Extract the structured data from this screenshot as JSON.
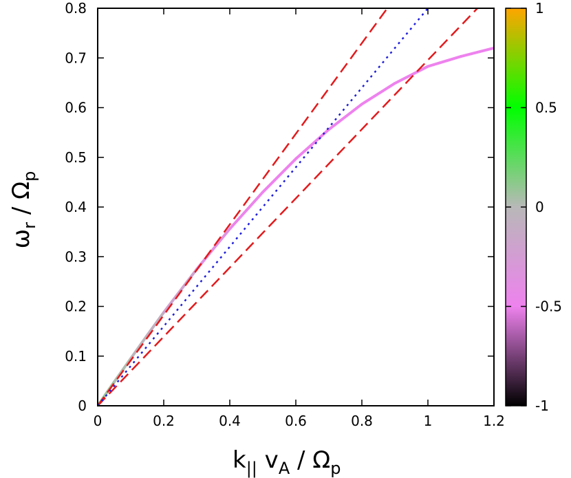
{
  "chart_data": {
    "type": "line",
    "title": "",
    "xlabel": "k|| vA / Ωp",
    "ylabel": "ωr / Ωp",
    "xlim": [
      0,
      1.2
    ],
    "ylim": [
      0,
      0.8
    ],
    "xticks": [
      "0",
      "0.2",
      "0.4",
      "0.6",
      "0.8",
      "1",
      "1.2"
    ],
    "yticks": [
      "0",
      "0.1",
      "0.2",
      "0.3",
      "0.4",
      "0.5",
      "0.6",
      "0.7",
      "0.8"
    ],
    "grid": false,
    "legend": "none",
    "series": [
      {
        "style": "solid-colormapped",
        "x": [
          0,
          0.05,
          0.1,
          0.15,
          0.2,
          0.3,
          0.4,
          0.5,
          0.6,
          0.7,
          0.8,
          0.9,
          1.0,
          1.1,
          1.2
        ],
        "y": [
          0,
          0.048,
          0.095,
          0.142,
          0.188,
          0.275,
          0.356,
          0.43,
          0.497,
          0.556,
          0.607,
          0.649,
          0.683,
          0.703,
          0.72
        ],
        "colorvalue": [
          0.1,
          0.05,
          0,
          -0.05,
          -0.1,
          -0.3,
          -0.45,
          -0.5,
          -0.5,
          -0.5,
          -0.5,
          -0.5,
          -0.5,
          -0.5,
          -0.5
        ]
      },
      {
        "style": "dashed",
        "color": "#e31a1c",
        "x": [
          0,
          0.877
        ],
        "y": [
          0,
          0.8
        ]
      },
      {
        "style": "dashed",
        "color": "#e31a1c",
        "x": [
          0,
          1.15
        ],
        "y": [
          0,
          0.8
        ]
      },
      {
        "style": "dotted",
        "color": "#1f1fd9",
        "x": [
          0,
          1.0
        ],
        "y": [
          0,
          0.8
        ]
      }
    ],
    "colorbar": {
      "range": [
        -1,
        1
      ],
      "ticks": [
        "1",
        "0.5",
        "0",
        "-0.5",
        "-1"
      ],
      "stops": [
        {
          "v": -1,
          "color": "#000000"
        },
        {
          "v": -0.5,
          "color": "#ee82ee"
        },
        {
          "v": 0,
          "color": "#b8b8b8"
        },
        {
          "v": 0.5,
          "color": "#00ff00"
        },
        {
          "v": 1,
          "color": "#ffa500"
        }
      ]
    }
  }
}
